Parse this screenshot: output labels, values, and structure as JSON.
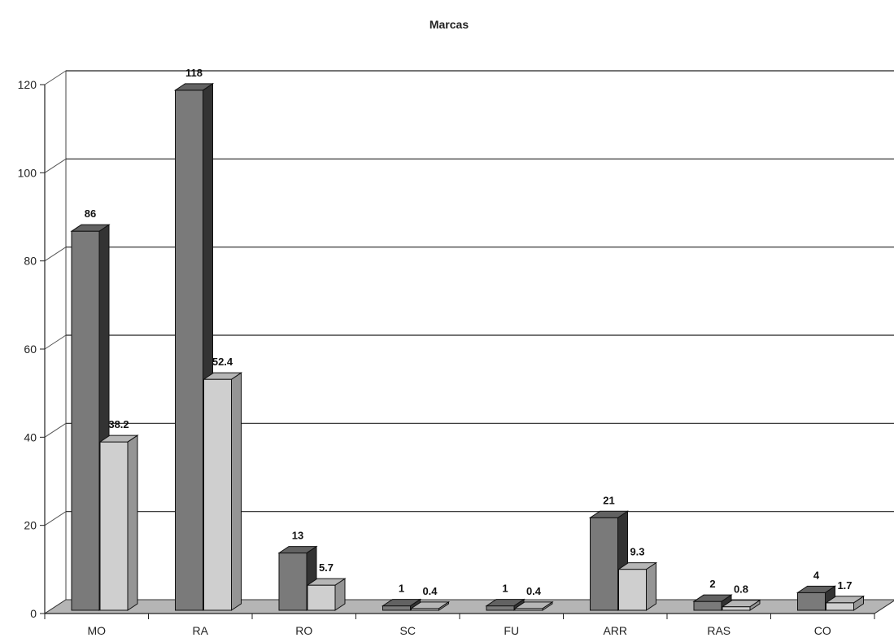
{
  "chart_data": {
    "type": "bar",
    "title": "Marcas",
    "categories": [
      "MO",
      "RA",
      "RO",
      "SC",
      "FU",
      "ARR",
      "RAS",
      "CO"
    ],
    "series": [
      {
        "values": [
          86,
          118,
          13,
          1,
          1,
          21,
          2,
          4
        ],
        "labels": [
          "86",
          "118",
          "13",
          "1",
          "1",
          "21",
          "2",
          "4"
        ],
        "color": "#7a7a7a"
      },
      {
        "values": [
          38.2,
          52.4,
          5.7,
          0.4,
          0.4,
          9.3,
          0.8,
          1.7
        ],
        "labels": [
          "38.2",
          "52.4",
          "5.7",
          "0.4",
          "0.4",
          "9.3",
          "0.8",
          "1.7"
        ],
        "color": "#cfcfcf"
      }
    ],
    "ylim": [
      0,
      120
    ],
    "yticks": [
      0,
      20,
      40,
      60,
      80,
      100,
      120
    ],
    "grid": true,
    "style": "3d-clustered-bar",
    "xlabel": "",
    "ylabel": ""
  }
}
